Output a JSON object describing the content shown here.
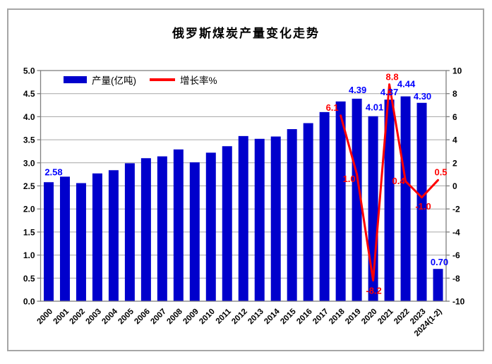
{
  "title": "俄罗斯煤炭产量变化走势",
  "colors": {
    "bar": "#0000CC",
    "bar_label": "#0000FF",
    "line": "#FF0000",
    "line_label": "#FF0000",
    "grid": "#A6A6A6",
    "axis": "#7F7F7F",
    "tick_text": "#000000",
    "frame": "#A6A6A6",
    "background": "#FFFFFF"
  },
  "chart_data": {
    "type": "bar+line combo",
    "title": "俄罗斯煤炭产量变化走势",
    "legend_position": "top-left-inside",
    "grid": "horizontal",
    "categories": [
      "2000",
      "2001",
      "2002",
      "2003",
      "2004",
      "2005",
      "2006",
      "2007",
      "2008",
      "2009",
      "2010",
      "2011",
      "2012",
      "2013",
      "2014",
      "2015",
      "2016",
      "2017",
      "2018",
      "2019",
      "2020",
      "2021",
      "2022",
      "2023",
      "2024(1-2)"
    ],
    "series": [
      {
        "name": "产量(亿吨)",
        "type": "bar",
        "axis": "left",
        "values": [
          2.58,
          2.7,
          2.56,
          2.77,
          2.84,
          2.99,
          3.1,
          3.14,
          3.29,
          3.01,
          3.22,
          3.36,
          3.58,
          3.52,
          3.57,
          3.73,
          3.86,
          4.1,
          4.33,
          4.39,
          4.01,
          4.37,
          4.44,
          4.3,
          0.7
        ],
        "point_labels": [
          {
            "i": 0,
            "text": "2.58",
            "dx": 7,
            "dy": -10
          },
          {
            "i": 19,
            "text": "4.39",
            "dx": 1,
            "dy": -8
          },
          {
            "i": 20,
            "text": "4.01",
            "dx": 2,
            "dy": -8
          },
          {
            "i": 21,
            "text": "4.37",
            "dx": 0,
            "dy": -6
          },
          {
            "i": 22,
            "text": "4.44",
            "dx": 1,
            "dy": -13
          },
          {
            "i": 23,
            "text": "4.30",
            "dx": 1,
            "dy": -5
          },
          {
            "i": 24,
            "text": "0.70",
            "dx": 2,
            "dy": -5
          }
        ]
      },
      {
        "name": "增长率%",
        "type": "line",
        "axis": "right",
        "start_index": 18,
        "values": [
          6.1,
          1.0,
          -8.2,
          8.8,
          0.4,
          -1.0,
          0.5
        ],
        "point_labels": [
          {
            "i": 18,
            "text": "6.1",
            "dx": -12,
            "dy": -7
          },
          {
            "i": 19,
            "text": "1.0",
            "dx": -11,
            "dy": 11
          },
          {
            "i": 20,
            "text": "-8.2",
            "dx": 1,
            "dy": 19
          },
          {
            "i": 21,
            "text": "8.8",
            "dx": 4,
            "dy": -6
          },
          {
            "i": 22,
            "text": "0.4",
            "dx": -10,
            "dy": 4
          },
          {
            "i": 23,
            "text": "-1.0",
            "dx": 2,
            "dy": 17
          },
          {
            "i": 24,
            "text": "0.5",
            "dx": 4,
            "dy": -7
          }
        ]
      }
    ],
    "left_axis": {
      "min": 0,
      "max": 5,
      "step": 0.5,
      "tick_labels": [
        "5.0",
        "4.5",
        "4.0",
        "3.5",
        "3.0",
        "2.5",
        "2.0",
        "1.5",
        "1.0",
        "0.5",
        "0.0"
      ]
    },
    "right_axis": {
      "min": -10,
      "max": 10,
      "step": 2,
      "tick_labels": [
        "10",
        "8",
        "6",
        "4",
        "2",
        "0",
        "-2",
        "-4",
        "-6",
        "-8",
        "-10"
      ]
    }
  }
}
